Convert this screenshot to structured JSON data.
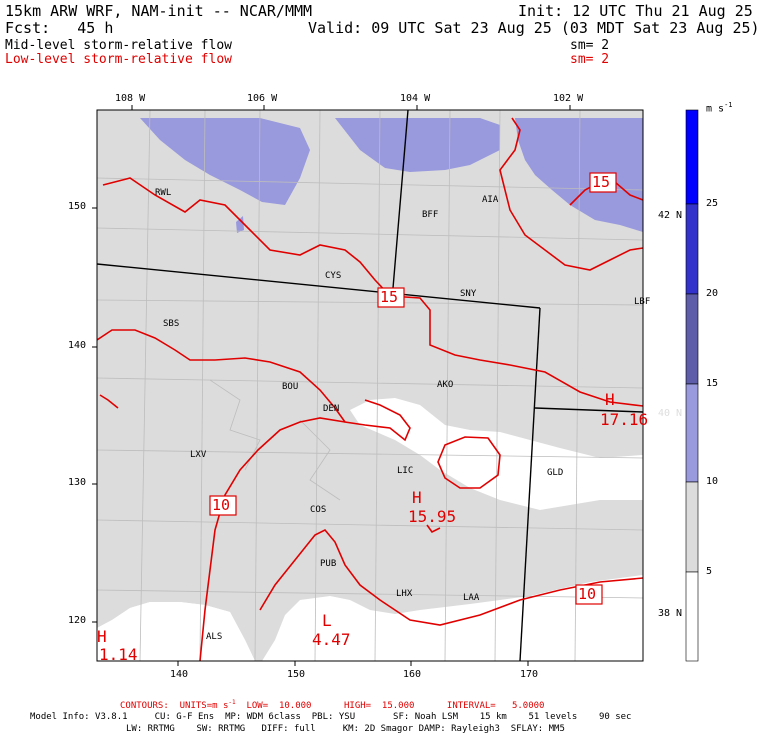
{
  "header": {
    "model_line": "15km ARW WRF, NAM-init -- NCAR/MMM",
    "init_line": "Init: 12 UTC Thu 21 Aug 25",
    "fcst_line": "Fcst:   45 h",
    "valid_line": "Valid: 09 UTC Sat 23 Aug 25 (03 MDT Sat 23 Aug 25)",
    "field1": "Mid-level storm-relative flow",
    "field1_sm": "sm= 2",
    "field2": "Low-level storm-relative flow",
    "field2_sm": "sm= 2"
  },
  "map": {
    "lon_labels": [
      "108 W",
      "106 W",
      "104 W",
      "102 W"
    ],
    "lat_labels": [
      "42 N",
      "40 N",
      "38 N"
    ],
    "x_ticks": [
      "140",
      "150",
      "160",
      "170"
    ],
    "y_ticks": [
      "150",
      "140",
      "130",
      "120"
    ],
    "stations": [
      "RWL",
      "BFF",
      "AIA",
      "CYS",
      "SNY",
      "LBF",
      "SBS",
      "BOU",
      "AKO",
      "DEN",
      "LXV",
      "LIC",
      "GLD",
      "COS",
      "PUB",
      "LHX",
      "LAA",
      "ALS"
    ],
    "contour_labels": [
      "15",
      "15",
      "10",
      "10"
    ],
    "highs": [
      {
        "symbol": "H",
        "value": "15.95"
      },
      {
        "symbol": "H",
        "value": "17.16"
      },
      {
        "symbol": "H",
        "value": "1.14"
      }
    ],
    "lows": [
      {
        "symbol": "L",
        "value": "4.47"
      }
    ]
  },
  "colorbar": {
    "units": "m s",
    "units_sup": "-1",
    "levels": [
      "25",
      "20",
      "15",
      "10",
      "5"
    ],
    "colors": [
      "#0000ff",
      "#3333cc",
      "#5d5daa",
      "#9999dd",
      "#dcdcdc",
      "#ffffff"
    ]
  },
  "footer": {
    "contours": "CONTOURS:  UNITS=m s",
    "contours_sup": "-1",
    "contours_rest": "  LOW=  10.000      HIGH=  15.000      INTERVAL=   5.0000",
    "model_info_1": "Model Info: V3.8.1     CU: G-F Ens  MP: WDM 6class  PBL: YSU       SF: Noah LSM    15 km    51 levels    90 sec",
    "model_info_2": "LW: RRTMG    SW: RRTMG   DIFF: full     KM: 2D Smagor DAMP: Rayleigh3  SFLAY: MM5"
  }
}
